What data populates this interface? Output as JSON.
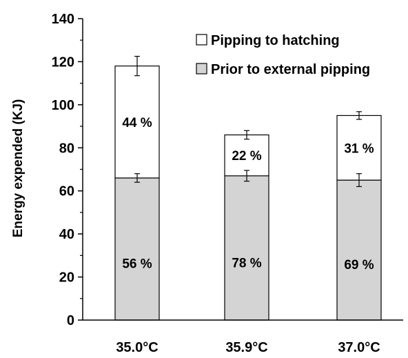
{
  "chart_data": {
    "type": "bar",
    "stacked": true,
    "categories": [
      "35.0°C",
      "35.9°C",
      "37.0°C"
    ],
    "ylabel": "Energy expended (KJ)",
    "xlabel": "",
    "ylim": [
      0,
      140
    ],
    "yticks": [
      0,
      20,
      40,
      60,
      80,
      100,
      120,
      140
    ],
    "ytick_labels": [
      "0",
      "20",
      "40",
      "60",
      "80",
      "100",
      "120",
      "140"
    ],
    "grid": false,
    "legend_position": "top-right",
    "series": [
      {
        "name": "Prior to external pipping",
        "color": "#d4d4d4",
        "values": [
          66,
          67,
          65
        ],
        "errors": [
          2,
          2.5,
          3
        ],
        "labels": [
          "56 %",
          "78 %",
          "69 %"
        ]
      },
      {
        "name": "Pipping to hatching",
        "color": "#ffffff",
        "values": [
          52,
          19,
          30
        ],
        "errors": [
          4.5,
          2,
          1.8
        ],
        "labels": [
          "44 %",
          "22 %",
          "31 %"
        ]
      }
    ]
  }
}
